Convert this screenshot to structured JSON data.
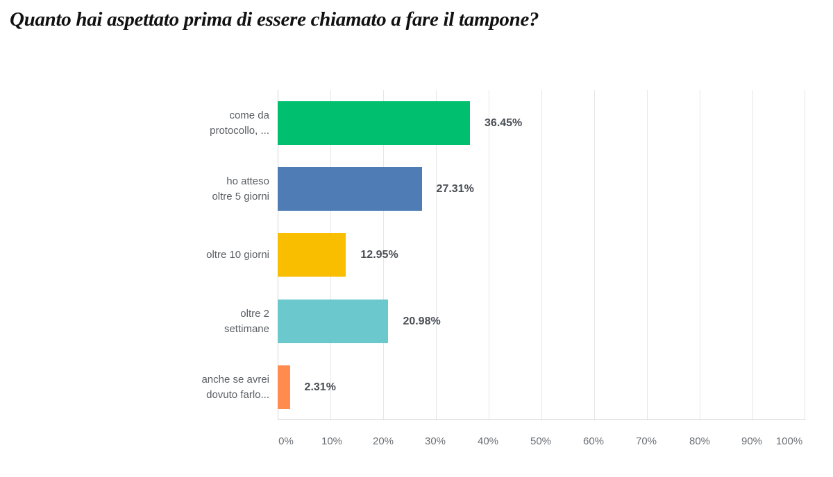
{
  "title": "Quanto hai aspettato prima di essere chiamato a fare il tampone?",
  "chart_data": {
    "type": "bar",
    "orientation": "horizontal",
    "title": "Quanto hai aspettato prima di essere chiamato a fare il tampone?",
    "categories": [
      "come da protocollo, ...",
      "ho atteso oltre 5 giorni",
      "oltre 10 giorni",
      "oltre 2 settimane",
      "anche se avrei dovuto farlo..."
    ],
    "values": [
      36.45,
      27.31,
      12.95,
      20.98,
      2.31
    ],
    "value_labels": [
      "36.45%",
      "27.31%",
      "12.95%",
      "20.98%",
      "2.31%"
    ],
    "colors": [
      "#00bf6f",
      "#507cb6",
      "#f9be00",
      "#6bc8cd",
      "#ff8b4f"
    ],
    "xlabel": "",
    "ylabel": "",
    "xlim": [
      0,
      100
    ],
    "xticks": [
      "0%",
      "10%",
      "20%",
      "30%",
      "40%",
      "50%",
      "60%",
      "70%",
      "80%",
      "90%",
      "100%"
    ],
    "grid": true,
    "legend": null
  },
  "categories": [
    {
      "line1": "come da",
      "line2": "protocollo, ..."
    },
    {
      "line1": "ho atteso",
      "line2": "oltre 5 giorni"
    },
    {
      "line1": "oltre 10 giorni",
      "line2": ""
    },
    {
      "line1": "oltre 2",
      "line2": "settimane"
    },
    {
      "line1": "anche se avrei",
      "line2": "dovuto farlo..."
    }
  ],
  "value_labels": [
    "36.45%",
    "27.31%",
    "12.95%",
    "20.98%",
    "2.31%"
  ],
  "xticks": [
    "0%",
    "10%",
    "20%",
    "30%",
    "40%",
    "50%",
    "60%",
    "70%",
    "80%",
    "90%",
    "100%"
  ]
}
